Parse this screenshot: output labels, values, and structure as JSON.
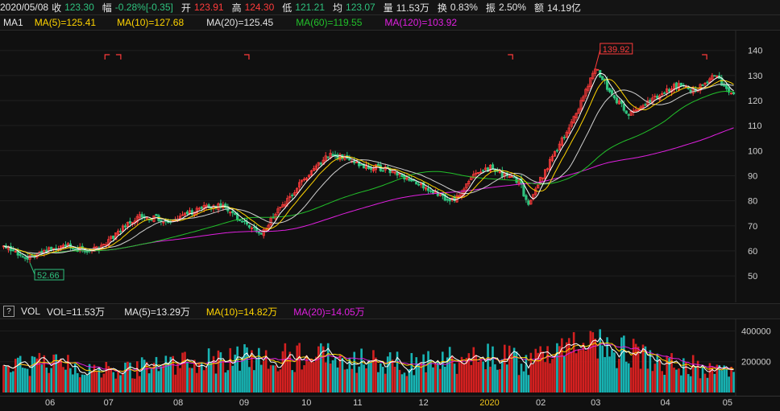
{
  "info": {
    "date": "2020/05/08",
    "close_label": "收",
    "close": "123.30",
    "change_label": "幅",
    "change": "-0.28%[-0.35]",
    "open_label": "开",
    "open": "123.91",
    "high_label": "高",
    "high": "124.30",
    "low_label": "低",
    "low": "121.21",
    "avg_label": "均",
    "avg": "123.07",
    "volume_label": "量",
    "volume": "11.53万",
    "turnover_label": "换",
    "turnover": "0.83%",
    "amplitude_label": "振",
    "amplitude": "2.50%",
    "amount_label": "额",
    "amount": "14.19亿"
  },
  "ma_legend": {
    "name": "MA1",
    "ma5": "MA(5)=125.41",
    "ma10": "MA(10)=127.68",
    "ma20": "MA(20)=125.45",
    "ma60": "MA(60)=119.55",
    "ma120": "MA(120)=103.92"
  },
  "vol_legend": {
    "help": "?",
    "name": "VOL",
    "vol": "VOL=11.53万",
    "ma5": "MA(5)=13.29万",
    "ma10": "MA(10)=14.82万",
    "ma20": "MA(20)=14.05万"
  },
  "colors": {
    "up": "#ff3b3b",
    "down": "#2ec27e",
    "volume_up": "#d42020",
    "volume_down": "#18b4b4",
    "ma5": "#ffffff",
    "ma10": "#ffd400",
    "ma20": "#d0d0d0",
    "ma60": "#22c02a",
    "ma120": "#e020e0",
    "highlight": "#f0c419"
  },
  "chart_data": {
    "type": "candlestick",
    "price_axis": {
      "ticks": [
        "140",
        "130",
        "120",
        "110",
        "100",
        "90",
        "80",
        "70",
        "60",
        "50"
      ],
      "range": [
        42,
        146
      ]
    },
    "volume_axis": {
      "ticks": [
        "400000",
        "200000"
      ],
      "range": [
        0,
        460000
      ]
    },
    "x_axis": {
      "labels": [
        "06",
        "07",
        "08",
        "09",
        "10",
        "11",
        "12",
        "2020",
        "02",
        "03",
        "04",
        "05"
      ],
      "highlight": "2020"
    },
    "annotations": {
      "max": "139.92",
      "min": "52.66"
    },
    "price_profile": [
      [
        0,
        62
      ],
      [
        8,
        57
      ],
      [
        18,
        60
      ],
      [
        26,
        62
      ],
      [
        34,
        60
      ],
      [
        40,
        61
      ],
      [
        50,
        69
      ],
      [
        58,
        74
      ],
      [
        64,
        73
      ],
      [
        70,
        71
      ],
      [
        78,
        75
      ],
      [
        84,
        77
      ],
      [
        92,
        78
      ],
      [
        98,
        73
      ],
      [
        104,
        69
      ],
      [
        108,
        66
      ],
      [
        112,
        72
      ],
      [
        120,
        82
      ],
      [
        130,
        93
      ],
      [
        138,
        99
      ],
      [
        144,
        96
      ],
      [
        150,
        94
      ],
      [
        158,
        93
      ],
      [
        166,
        91
      ],
      [
        172,
        87
      ],
      [
        180,
        84
      ],
      [
        186,
        80
      ],
      [
        192,
        82
      ],
      [
        196,
        90
      ],
      [
        204,
        93
      ],
      [
        210,
        90
      ],
      [
        216,
        88
      ],
      [
        220,
        78
      ],
      [
        224,
        87
      ],
      [
        230,
        97
      ],
      [
        236,
        108
      ],
      [
        242,
        119
      ],
      [
        248,
        133
      ],
      [
        252,
        127
      ],
      [
        256,
        121
      ],
      [
        262,
        115
      ],
      [
        268,
        118
      ],
      [
        276,
        123
      ],
      [
        282,
        126
      ],
      [
        288,
        124
      ],
      [
        294,
        126
      ],
      [
        298,
        130
      ],
      [
        302,
        126
      ],
      [
        306,
        123
      ]
    ],
    "volume_profile": [
      [
        0,
        150000
      ],
      [
        20,
        190000
      ],
      [
        40,
        140000
      ],
      [
        60,
        160000
      ],
      [
        80,
        190000
      ],
      [
        100,
        230000
      ],
      [
        110,
        200000
      ],
      [
        120,
        240000
      ],
      [
        140,
        220000
      ],
      [
        160,
        180000
      ],
      [
        180,
        200000
      ],
      [
        200,
        230000
      ],
      [
        220,
        200000
      ],
      [
        240,
        280000
      ],
      [
        250,
        320000
      ],
      [
        270,
        220000
      ],
      [
        290,
        170000
      ],
      [
        306,
        120000
      ]
    ]
  }
}
